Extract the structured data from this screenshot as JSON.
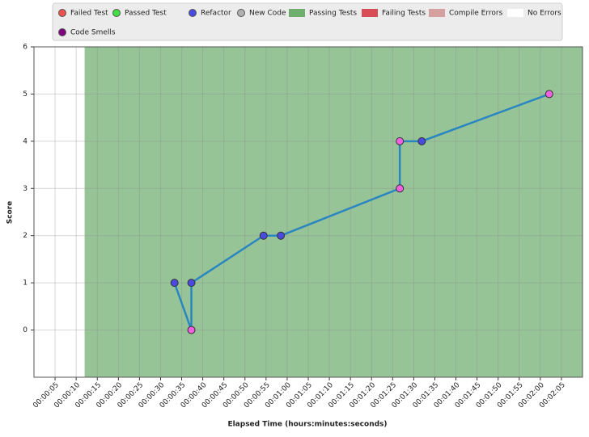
{
  "chart_data": {
    "type": "line",
    "y_label": "Score",
    "x_label": "Elapsed Time (hours:minutes:seconds)",
    "x": [
      33.3,
      37.3,
      37.3,
      54.4,
      58.5,
      86.7,
      86.7,
      91.9,
      122.1
    ],
    "values": [
      1,
      0,
      1,
      2,
      2,
      3,
      4,
      4,
      5
    ],
    "point_colors": [
      "#4a4ae0",
      "#f060e0",
      "#4a4ae0",
      "#4a4ae0",
      "#4a4ae0",
      "#f060e0",
      "#f060e0",
      "#4a4ae0",
      "#f060e0"
    ],
    "color": "#2a86c0",
    "bands": [
      {
        "start": 0,
        "end": 12,
        "color": "#ffffff"
      },
      {
        "start": 12,
        "end": 130,
        "color": "#97c497"
      }
    ],
    "xlim": [
      0,
      130
    ],
    "ylim": [
      -1,
      6
    ],
    "yticks": [
      0,
      1,
      2,
      3,
      4,
      5,
      6
    ],
    "xticks": [
      {
        "value": 5,
        "label": "00:00:05"
      },
      {
        "value": 10,
        "label": "00:00:10"
      },
      {
        "value": 15,
        "label": "00:00:15"
      },
      {
        "value": 20,
        "label": "00:00:20"
      },
      {
        "value": 25,
        "label": "00:00:25"
      },
      {
        "value": 30,
        "label": "00:00:30"
      },
      {
        "value": 35,
        "label": "00:00:35"
      },
      {
        "value": 40,
        "label": "00:00:40"
      },
      {
        "value": 45,
        "label": "00:00:45"
      },
      {
        "value": 50,
        "label": "00:00:50"
      },
      {
        "value": 55,
        "label": "00:00:55"
      },
      {
        "value": 60,
        "label": "00:01:00"
      },
      {
        "value": 65,
        "label": "00:01:05"
      },
      {
        "value": 70,
        "label": "00:01:10"
      },
      {
        "value": 75,
        "label": "00:01:15"
      },
      {
        "value": 80,
        "label": "00:01:20"
      },
      {
        "value": 85,
        "label": "00:01:25"
      },
      {
        "value": 90,
        "label": "00:01:30"
      },
      {
        "value": 95,
        "label": "00:01:35"
      },
      {
        "value": 100,
        "label": "00:01:40"
      },
      {
        "value": 105,
        "label": "00:01:45"
      },
      {
        "value": 110,
        "label": "00:01:50"
      },
      {
        "value": 115,
        "label": "00:01:55"
      },
      {
        "value": 120,
        "label": "00:02:00"
      },
      {
        "value": 125,
        "label": "00:02:05"
      }
    ],
    "grid": true,
    "legend": [
      {
        "name": "Failed Test",
        "shape": "circle",
        "color": "#f05050"
      },
      {
        "name": "Passed Test",
        "shape": "circle",
        "color": "#40e040"
      },
      {
        "name": "Refactor",
        "shape": "circle",
        "color": "#4a4ae0"
      },
      {
        "name": "New Code",
        "shape": "circle",
        "color": "#b0b0b0"
      },
      {
        "name": "Passing Tests",
        "shape": "rect",
        "color": "#6fae6f"
      },
      {
        "name": "Failing Tests",
        "shape": "rect",
        "color": "#d84c58"
      },
      {
        "name": "Compile Errors",
        "shape": "rect",
        "color": "#d4a0a0"
      },
      {
        "name": "No Errors",
        "shape": "rect",
        "color": "#ffffff"
      },
      {
        "name": "Code Smells",
        "shape": "circle",
        "color": "#800080"
      }
    ]
  }
}
